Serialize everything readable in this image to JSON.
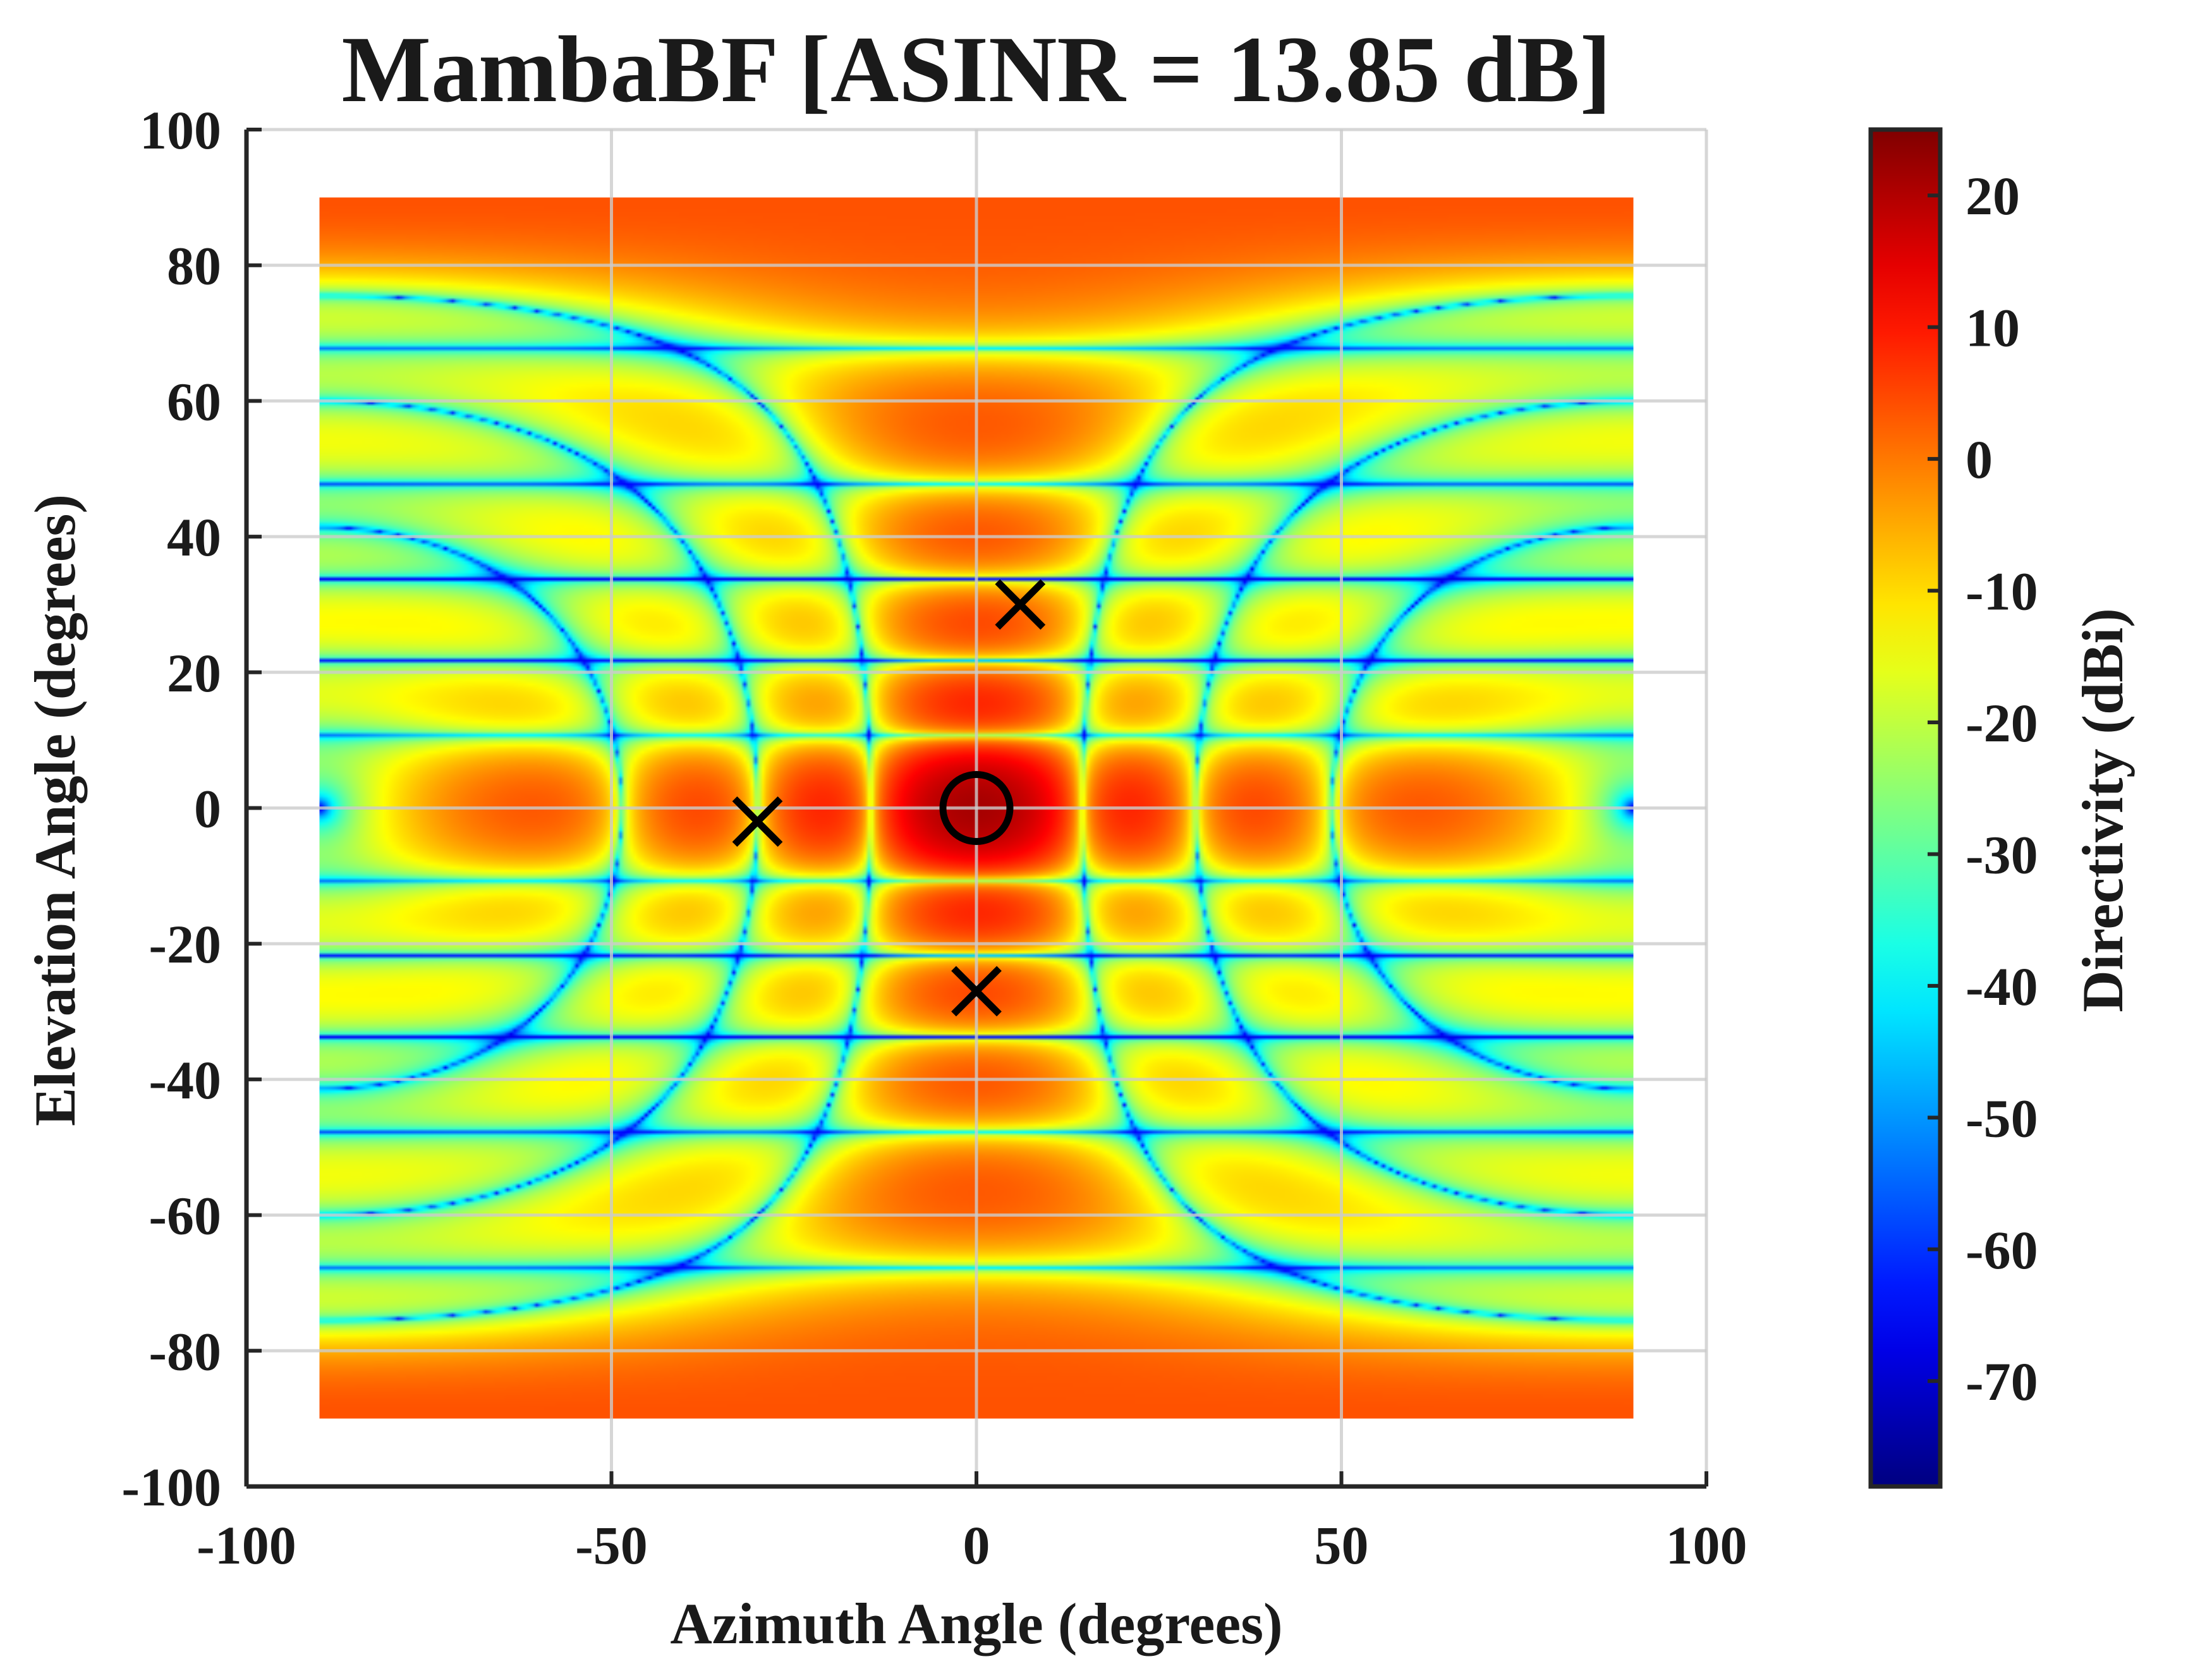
{
  "chart_data": {
    "type": "heatmap",
    "title": "MambaBF [ASINR = 13.85 dB]",
    "xlabel": "Azimuth Angle (degrees)",
    "ylabel": "Elevation Angle (degrees)",
    "xlim": [
      -100,
      100
    ],
    "ylim": [
      -100,
      100
    ],
    "xticks": [
      -100,
      -50,
      0,
      50,
      100
    ],
    "yticks": [
      100,
      80,
      60,
      40,
      20,
      0,
      -20,
      -40,
      -60,
      -80,
      -100
    ],
    "grid": true,
    "data_extent": {
      "azimuth": [
        -90,
        90
      ],
      "elevation": [
        -90,
        90
      ]
    },
    "colorbar": {
      "label": "Directivity (dBi)",
      "range": [
        -78,
        25
      ],
      "ticks": [
        20,
        10,
        0,
        -10,
        -20,
        -30,
        -40,
        -50,
        -60,
        -70
      ],
      "colormap": "jet"
    },
    "markers": [
      {
        "name": "desired-user",
        "symbol": "circle",
        "azimuth": 0,
        "elevation": 0
      },
      {
        "name": "interferer-1",
        "symbol": "x",
        "azimuth": 6,
        "elevation": 30
      },
      {
        "name": "interferer-2",
        "symbol": "x",
        "azimuth": -30,
        "elevation": -2
      },
      {
        "name": "interferer-3",
        "symbol": "x",
        "azimuth": 0,
        "elevation": -27
      }
    ]
  }
}
